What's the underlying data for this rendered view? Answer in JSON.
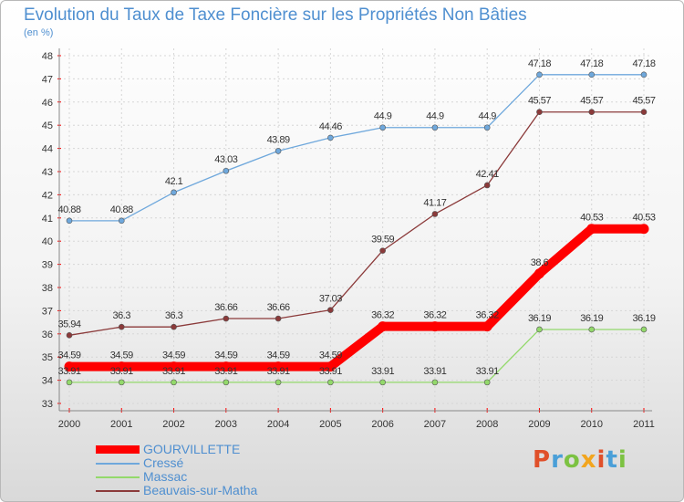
{
  "header": {
    "title": "Evolution du Taux de Taxe Foncière sur les Propriétés Non Bâties",
    "unit": "(en %)"
  },
  "chart_data": {
    "type": "line",
    "title": "Evolution du Taux de Taxe Foncière sur les Propriétés Non Bâties",
    "ylabel": "(en %)",
    "xlabel": "",
    "x": [
      "2000",
      "2001",
      "2002",
      "2003",
      "2004",
      "2005",
      "2006",
      "2007",
      "2008",
      "2009",
      "2010",
      "2011"
    ],
    "ylim": [
      33,
      48
    ],
    "yticks": [
      "33",
      "34",
      "35",
      "36",
      "37",
      "38",
      "39",
      "40",
      "41",
      "42",
      "43",
      "44",
      "45",
      "46",
      "47",
      "48"
    ],
    "grid": true,
    "legend_position": "bottom-left",
    "series": [
      {
        "name": "GOURVILLETTE",
        "color": "#ff0000",
        "values": [
          34.59,
          34.59,
          34.59,
          34.59,
          34.59,
          34.59,
          36.32,
          36.32,
          36.32,
          38.6,
          40.53,
          40.53
        ],
        "labels": [
          "34.59",
          "34.59",
          "34.59",
          "34.59",
          "34.59",
          "34.59",
          "36.32",
          "36.32",
          "36.32",
          "38.6",
          "40.53",
          "40.53"
        ]
      },
      {
        "name": "Cressé",
        "color": "#6fa8dc",
        "values": [
          40.88,
          40.88,
          42.1,
          43.03,
          43.89,
          44.46,
          44.9,
          44.9,
          44.9,
          47.18,
          47.18,
          47.18
        ],
        "labels": [
          "40.88",
          "40.88",
          "42.1",
          "43.03",
          "43.89",
          "44.46",
          "44.9",
          "44.9",
          "44.9",
          "47.18",
          "47.18",
          "47.18"
        ]
      },
      {
        "name": "Massac",
        "color": "#93d96b",
        "values": [
          33.91,
          33.91,
          33.91,
          33.91,
          33.91,
          33.91,
          33.91,
          33.91,
          33.91,
          36.19,
          36.19,
          36.19
        ],
        "labels": [
          "33.91",
          "33.91",
          "33.91",
          "33.91",
          "33.91",
          "33.91",
          "33.91",
          "33.91",
          "33.91",
          "36.19",
          "36.19",
          "36.19"
        ]
      },
      {
        "name": "Beauvais-sur-Matha",
        "color": "#8b3a3a",
        "values": [
          35.94,
          36.3,
          36.3,
          36.66,
          36.66,
          37.03,
          39.59,
          41.17,
          42.41,
          45.57,
          45.57,
          45.57
        ],
        "labels": [
          "35.94",
          "36.3",
          "36.3",
          "36.66",
          "36.66",
          "37.03",
          "39.59",
          "41.17",
          "42.41",
          "45.57",
          "45.57",
          "45.57"
        ]
      }
    ]
  },
  "legend": {
    "items": [
      {
        "label": "GOURVILLETTE",
        "color": "#ff0000"
      },
      {
        "label": "Cressé",
        "color": "#6fa8dc"
      },
      {
        "label": "Massac",
        "color": "#93d96b"
      },
      {
        "label": "Beauvais-sur-Matha",
        "color": "#8b3a3a"
      }
    ]
  },
  "logo": {
    "text": "Proxiti",
    "colors": [
      "#e0502a",
      "#4a9fd8",
      "#7cc242",
      "#f2a51e",
      "#e0502a",
      "#4a9fd8",
      "#7cc242"
    ]
  }
}
